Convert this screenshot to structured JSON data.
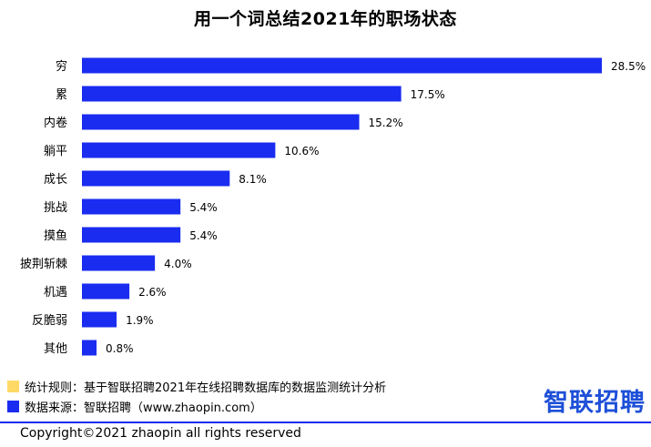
{
  "chart_data": {
    "type": "bar",
    "orientation": "horizontal",
    "title": "用一个词总结2021年的职场状态",
    "categories": [
      "穷",
      "累",
      "内卷",
      "躺平",
      "成长",
      "挑战",
      "摸鱼",
      "披荆斩棘",
      "机遇",
      "反脆弱",
      "其他"
    ],
    "values": [
      28.5,
      17.5,
      15.2,
      10.6,
      8.1,
      5.4,
      5.4,
      4.0,
      2.6,
      1.9,
      0.8
    ],
    "value_labels": [
      "28.5%",
      "17.5%",
      "15.2%",
      "10.6%",
      "8.1%",
      "5.4%",
      "5.4%",
      "4.0%",
      "2.6%",
      "1.9%",
      "0.8%"
    ],
    "color": "#1a2cf0",
    "grid": false
  },
  "footnotes": {
    "method": "统计规则：基于智联招聘2021年在线招聘数据库的数据监测统计分析",
    "source": "数据来源：智联招聘（www.zhaopin.com）"
  },
  "logo_text": "智联招聘",
  "copyright": "Copyright©2021 zhaopin all rights reserved",
  "colors": {
    "bar": "#1a2cf0",
    "legend_yellow": "#ffd966",
    "logo": "#1e50d8"
  }
}
